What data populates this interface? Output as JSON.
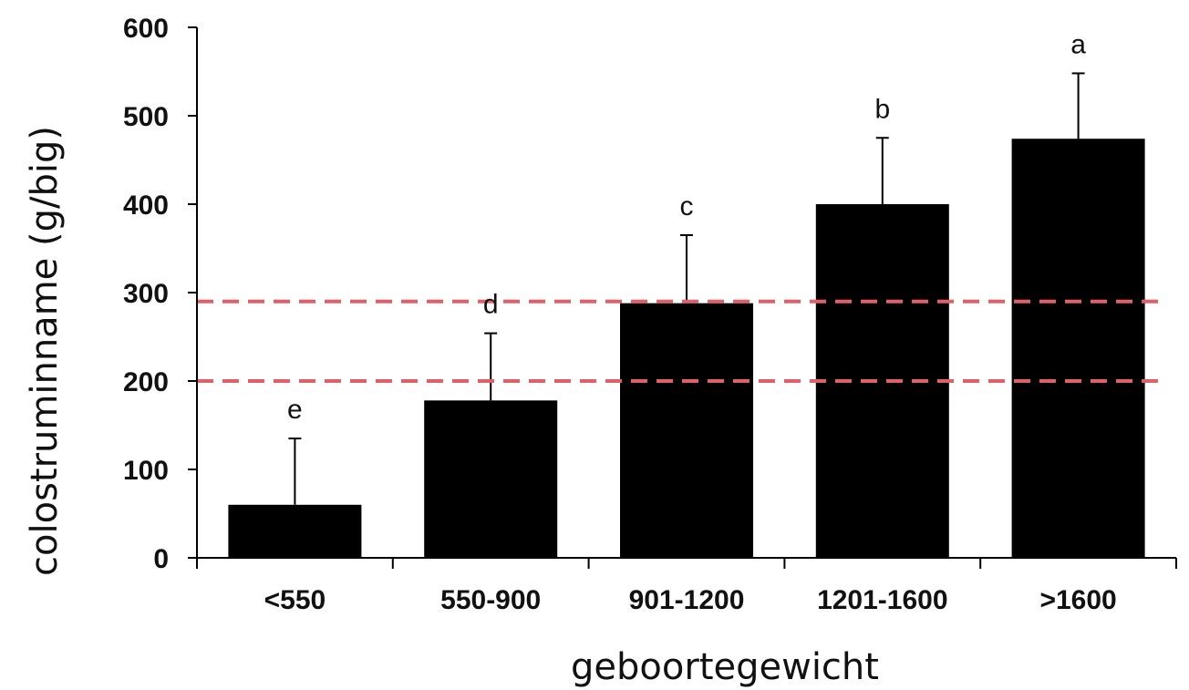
{
  "chart_data": {
    "type": "bar",
    "xlabel": "geboortegewicht",
    "ylabel": "colostruminname (g/big)",
    "categories": [
      "<550",
      "550-900",
      "901-1200",
      "1201-1600",
      ">1600"
    ],
    "values": [
      60,
      178,
      288,
      400,
      474
    ],
    "error_upper": [
      135,
      254,
      365,
      475,
      548
    ],
    "significance_letters": [
      "e",
      "d",
      "c",
      "b",
      "a"
    ],
    "ylim": [
      0,
      600
    ],
    "yticks": [
      0,
      100,
      200,
      300,
      400,
      500,
      600
    ],
    "reference_lines": [
      200,
      290
    ],
    "grid": false,
    "colors": {
      "bar": "#000000",
      "reference_line": "#e0606a",
      "axis": "#000000"
    }
  }
}
